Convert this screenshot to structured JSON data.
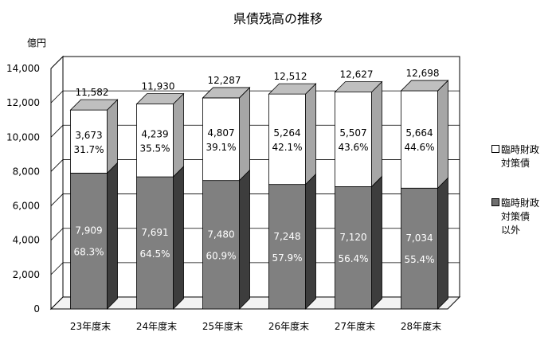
{
  "chart_data": {
    "type": "bar",
    "stacked": true,
    "three_d": true,
    "title": "県債残高の推移",
    "ylabel": "億円",
    "ylim": [
      0,
      14000
    ],
    "yticks": [
      "0",
      "2,000",
      "4,000",
      "6,000",
      "8,000",
      "10,000",
      "12,000",
      "14,000"
    ],
    "categories": [
      "23年度末",
      "24年度末",
      "25年度末",
      "26年度末",
      "27年度末",
      "28年度末"
    ],
    "totals": [
      11582,
      11930,
      12287,
      12512,
      12627,
      12698
    ],
    "total_labels": [
      "11,582",
      "11,930",
      "12,287",
      "12,512",
      "12,627",
      "12,698"
    ],
    "series": [
      {
        "name": "臨時財政対策債以外",
        "legend_lines": [
          "臨時財政",
          "対策債",
          "以外"
        ],
        "values": [
          7909,
          7691,
          7480,
          7248,
          7120,
          7034
        ],
        "value_labels": [
          "7,909",
          "7,691",
          "7,480",
          "7,248",
          "7,120",
          "7,034"
        ],
        "percent_labels": [
          "68.3%",
          "64.5%",
          "60.9%",
          "57.9%",
          "56.4%",
          "55.4%"
        ],
        "color": "#808080",
        "swatch_color": "#6e6e6e"
      },
      {
        "name": "臨時財政対策債",
        "legend_lines": [
          "臨時財政",
          "対策債"
        ],
        "values": [
          3673,
          4239,
          4807,
          5264,
          5507,
          5664
        ],
        "value_labels": [
          "3,673",
          "4,239",
          "4,807",
          "5,264",
          "5,507",
          "5,664"
        ],
        "percent_labels": [
          "31.7%",
          "35.5%",
          "39.1%",
          "42.1%",
          "43.6%",
          "44.6%"
        ],
        "color": "#ffffff",
        "swatch_color": "#ffffff"
      }
    ],
    "legend_position": "right",
    "grid": true
  }
}
